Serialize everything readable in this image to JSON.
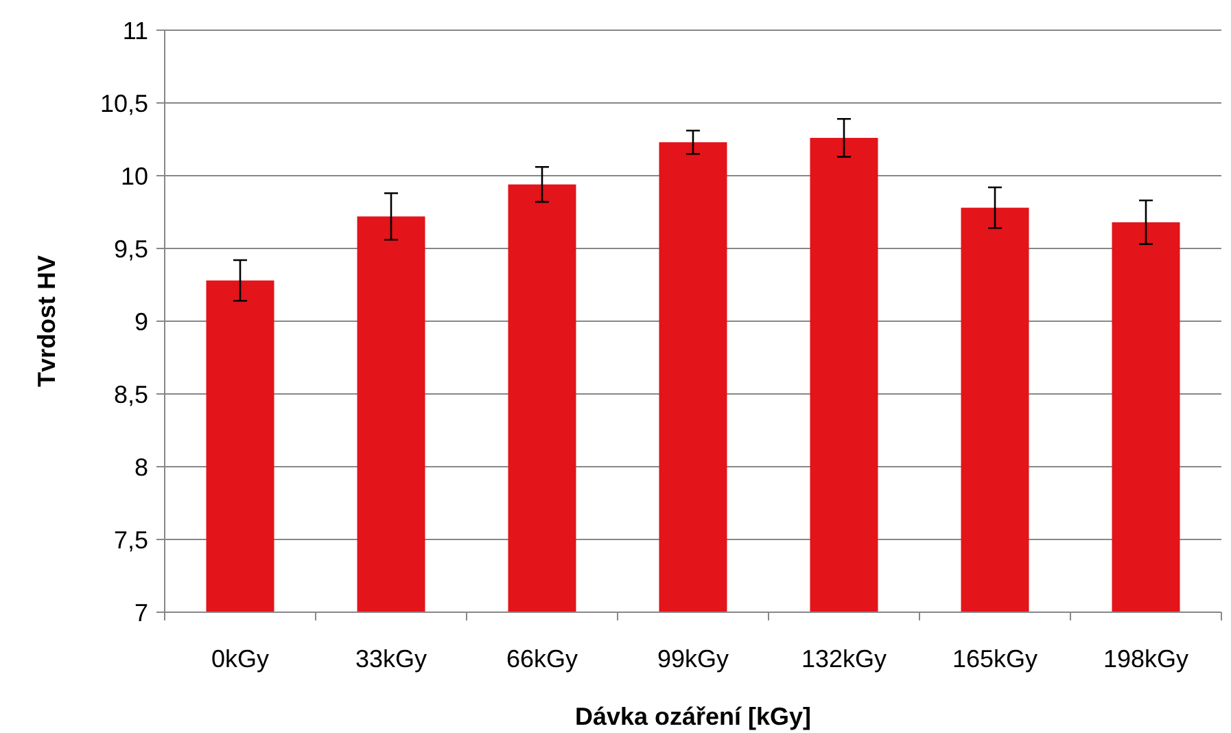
{
  "chart_data": {
    "type": "bar",
    "xlabel": "Dávka ozáření [kGy]",
    "ylabel": "Tvrdost HV",
    "categories": [
      "0kGy",
      "33kGy",
      "66kGy",
      "99kGy",
      "132kGy",
      "165kGy",
      "198kGy"
    ],
    "values": [
      9.28,
      9.72,
      9.94,
      10.23,
      10.26,
      9.78,
      9.68
    ],
    "errors": [
      0.14,
      0.16,
      0.12,
      0.08,
      0.13,
      0.14,
      0.15
    ],
    "color": "#e3141a",
    "ylim": [
      7,
      11
    ],
    "yticks": [
      7,
      {
        "value": 7.5,
        "label": "7,5"
      },
      8,
      {
        "value": 8.5,
        "label": "8,5"
      },
      9,
      {
        "value": 9.5,
        "label": "9,5"
      },
      10,
      {
        "value": 10.5,
        "label": "10,5"
      },
      11
    ],
    "grid": "y"
  }
}
